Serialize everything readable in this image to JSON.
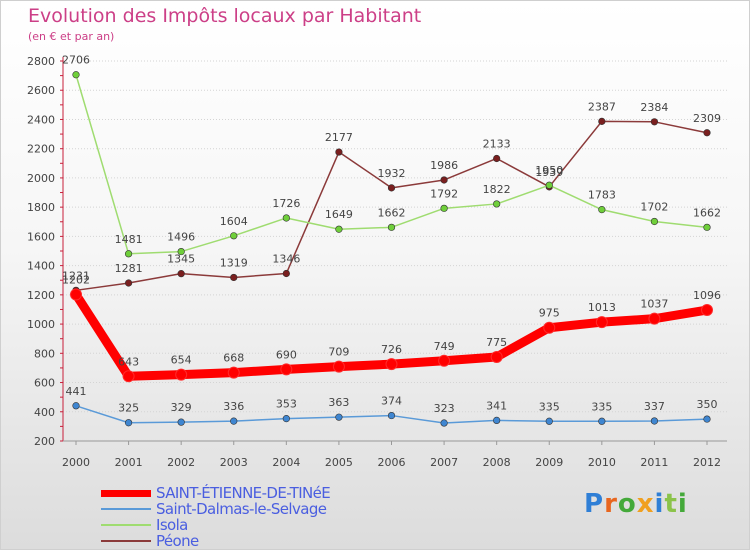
{
  "chart_data": {
    "type": "line",
    "title": "Evolution des Impôts locaux par Habitant",
    "subtitle": "(en € et par an)",
    "xlabel": "",
    "ylabel": "",
    "x": [
      "2000",
      "2001",
      "2002",
      "2003",
      "2004",
      "2005",
      "2006",
      "2007",
      "2008",
      "2009",
      "2010",
      "2011",
      "2012"
    ],
    "ylim": [
      200,
      2800
    ],
    "yticks": [
      200,
      400,
      600,
      800,
      1000,
      1200,
      1400,
      1600,
      1800,
      2000,
      2200,
      2400,
      2600,
      2800
    ],
    "series": [
      {
        "name": "Péone",
        "color": "#7a1f1f",
        "line": "#8b3a3a",
        "values": [
          1231,
          1281,
          1345,
          1319,
          1346,
          2177,
          1932,
          1986,
          2133,
          1939,
          2387,
          2384,
          2309
        ]
      },
      {
        "name": "Isola",
        "color": "#6fcf3a",
        "line": "#9fdc70",
        "values": [
          2706,
          1481,
          1496,
          1604,
          1726,
          1649,
          1662,
          1792,
          1822,
          1950,
          1783,
          1702,
          1662
        ]
      },
      {
        "name": "Saint-Dalmas-le-Selvage",
        "color": "#3f86d1",
        "line": "#5a9ad8",
        "values": [
          441,
          325,
          329,
          336,
          353,
          363,
          374,
          323,
          341,
          335,
          335,
          337,
          350
        ]
      },
      {
        "name": "SAINT-ÉTIENNE-DE-TINéE",
        "color": "#ff0000",
        "line": "#ff0000",
        "values": [
          1202,
          643,
          654,
          668,
          690,
          709,
          726,
          749,
          775,
          975,
          1013,
          1037,
          1096
        ]
      }
    ]
  },
  "legend": [
    {
      "label": "SAINT-ÉTIENNE-DE-TINéE",
      "color": "#ff0000"
    },
    {
      "label": "Saint-Dalmas-le-Selvage",
      "color": "#5a9ad8"
    },
    {
      "label": "Isola",
      "color": "#9fdc70"
    },
    {
      "label": "Péone",
      "color": "#8b3a3a"
    }
  ],
  "logo": {
    "p": "P",
    "r": "r",
    "o": "o",
    "x": "x",
    "i": "i",
    "t": "t",
    "i2": "i"
  }
}
